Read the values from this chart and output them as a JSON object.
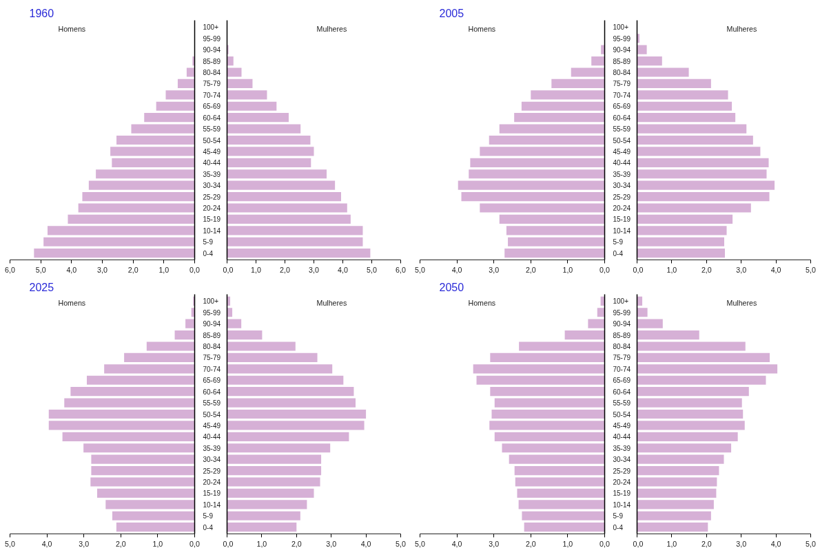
{
  "chart_data": [
    {
      "type": "bar",
      "orientation": "horizontal",
      "title": "1960",
      "annotations": [
        "Homens"
      ],
      "color": "#d6b0d6",
      "categories": [
        "100+",
        "95-99",
        "90-94",
        "85-89",
        "80-84",
        "75-79",
        "70-74",
        "65-69",
        "60-64",
        "55-59",
        "50-54",
        "45-49",
        "40-44",
        "35-39",
        "30-34",
        "25-29",
        "20-24",
        "15-19",
        "10-14",
        "5-9",
        "0-4"
      ],
      "values": [
        0,
        0,
        0,
        0.07,
        0.26,
        0.55,
        0.94,
        1.25,
        1.64,
        2.06,
        2.54,
        2.74,
        2.69,
        3.21,
        3.44,
        3.65,
        3.78,
        4.12,
        4.78,
        4.91,
        5.22
      ],
      "xlim": [
        6,
        0
      ],
      "xticks": [
        {
          "value": 6,
          "label": "6,0"
        },
        {
          "value": 5,
          "label": "5,0"
        },
        {
          "value": 4,
          "label": "4,0"
        },
        {
          "value": 3,
          "label": "3,0"
        },
        {
          "value": 2,
          "label": "2,0"
        },
        {
          "value": 1,
          "label": "1,0"
        },
        {
          "value": 0,
          "label": "0,0"
        }
      ]
    },
    {
      "type": "bar",
      "orientation": "horizontal",
      "annotations": [
        "Mulheres"
      ],
      "tick_labels": "x",
      "color": "#d6b0d6",
      "categories": [
        null,
        null,
        null,
        null,
        null,
        null,
        null,
        null,
        null,
        null,
        null,
        null,
        null,
        null,
        null,
        null,
        null,
        null,
        null,
        null,
        null
      ],
      "values": [
        0,
        0,
        0.05,
        0.22,
        0.5,
        0.88,
        1.38,
        1.71,
        2.13,
        2.54,
        2.88,
        3.0,
        2.9,
        3.44,
        3.73,
        3.94,
        4.15,
        4.27,
        4.69,
        4.69,
        4.95
      ],
      "xlim": [
        0,
        6
      ],
      "xticks": [
        {
          "value": 0,
          "label": "0,0"
        },
        {
          "value": 1,
          "label": "1,0"
        },
        {
          "value": 2,
          "label": "2,0"
        },
        {
          "value": 3,
          "label": "3,0"
        },
        {
          "value": 4,
          "label": "4,0"
        },
        {
          "value": 5,
          "label": "5,0"
        },
        {
          "value": 6,
          "label": "6,0"
        }
      ]
    },
    {
      "type": "bar",
      "orientation": "horizontal",
      "title": "2005",
      "annotations": [
        "Homens"
      ],
      "color": "#d6b0d6",
      "categories": [
        "100+",
        "95-99",
        "90-94",
        "85-89",
        "80-84",
        "75-79",
        "70-74",
        "65-69",
        "60-64",
        "55-59",
        "50-54",
        "45-49",
        "40-44",
        "35-39",
        "30-34",
        "25-29",
        "20-24",
        "15-19",
        "10-14",
        "5-9",
        "0-4"
      ],
      "values": [
        0,
        0,
        0.1,
        0.36,
        0.91,
        1.44,
        2.0,
        2.25,
        2.45,
        2.85,
        3.13,
        3.38,
        3.64,
        3.68,
        3.97,
        3.88,
        3.38,
        2.85,
        2.66,
        2.62,
        2.71
      ],
      "xlim": [
        5,
        0
      ],
      "xticks": [
        {
          "value": 5,
          "label": "5,0"
        },
        {
          "value": 4,
          "label": "4,0"
        },
        {
          "value": 3,
          "label": "3,0"
        },
        {
          "value": 2,
          "label": "2,0"
        },
        {
          "value": 1,
          "label": "1,0"
        },
        {
          "value": 0,
          "label": "0,0"
        }
      ]
    },
    {
      "type": "bar",
      "orientation": "horizontal",
      "annotations": [
        "Mulheres"
      ],
      "tick_labels": "x",
      "color": "#d6b0d6",
      "categories": [
        null,
        null,
        null,
        null,
        null,
        null,
        null,
        null,
        null,
        null,
        null,
        null,
        null,
        null,
        null,
        null,
        null,
        null,
        null,
        null,
        null
      ],
      "values": [
        0,
        0.07,
        0.28,
        0.72,
        1.49,
        2.13,
        2.62,
        2.73,
        2.83,
        3.15,
        3.34,
        3.55,
        3.79,
        3.73,
        3.96,
        3.81,
        3.28,
        2.75,
        2.58,
        2.51,
        2.53
      ],
      "xlim": [
        0,
        5
      ],
      "xticks": [
        {
          "value": 0,
          "label": "0,0"
        },
        {
          "value": 1,
          "label": "1,0"
        },
        {
          "value": 2,
          "label": "2,0"
        },
        {
          "value": 3,
          "label": "3,0"
        },
        {
          "value": 4,
          "label": "4,0"
        },
        {
          "value": 5,
          "label": "5,0"
        }
      ]
    },
    {
      "type": "bar",
      "orientation": "horizontal",
      "title": "2025",
      "annotations": [
        "Homens"
      ],
      "color": "#d6b0d6",
      "categories": [
        "100+",
        "95-99",
        "90-94",
        "85-89",
        "80-84",
        "75-79",
        "70-74",
        "65-69",
        "60-64",
        "55-59",
        "50-54",
        "45-49",
        "40-44",
        "35-39",
        "30-34",
        "25-29",
        "20-24",
        "15-19",
        "10-14",
        "5-9",
        "0-4"
      ],
      "values": [
        0.04,
        0.09,
        0.25,
        0.54,
        1.3,
        1.91,
        2.45,
        2.92,
        3.36,
        3.53,
        3.95,
        3.95,
        3.58,
        3.01,
        2.8,
        2.8,
        2.82,
        2.64,
        2.41,
        2.23,
        2.12
      ],
      "xlim": [
        5,
        0
      ],
      "xticks": [
        {
          "value": 5,
          "label": "5,0"
        },
        {
          "value": 4,
          "label": "4,0"
        },
        {
          "value": 3,
          "label": "3,0"
        },
        {
          "value": 2,
          "label": "2,0"
        },
        {
          "value": 1,
          "label": "1,0"
        },
        {
          "value": 0,
          "label": "0,0"
        }
      ]
    },
    {
      "type": "bar",
      "orientation": "horizontal",
      "annotations": [
        "Mulheres"
      ],
      "tick_labels": "x",
      "color": "#d6b0d6",
      "categories": [
        null,
        null,
        null,
        null,
        null,
        null,
        null,
        null,
        null,
        null,
        null,
        null,
        null,
        null,
        null,
        null,
        null,
        null,
        null,
        null,
        null
      ],
      "values": [
        0.09,
        0.15,
        0.41,
        1.01,
        1.97,
        2.6,
        3.03,
        3.35,
        3.65,
        3.7,
        4.0,
        3.95,
        3.51,
        2.97,
        2.71,
        2.71,
        2.68,
        2.5,
        2.3,
        2.11,
        2.0
      ],
      "xlim": [
        0,
        5
      ],
      "xticks": [
        {
          "value": 0,
          "label": "0,0"
        },
        {
          "value": 1,
          "label": "1,0"
        },
        {
          "value": 2,
          "label": "2,0"
        },
        {
          "value": 3,
          "label": "3,0"
        },
        {
          "value": 4,
          "label": "4,0"
        },
        {
          "value": 5,
          "label": "5,0"
        }
      ]
    },
    {
      "type": "bar",
      "orientation": "horizontal",
      "title": "2050",
      "annotations": [
        "Homens"
      ],
      "color": "#d6b0d6",
      "categories": [
        "100+",
        "95-99",
        "90-94",
        "85-89",
        "80-84",
        "75-79",
        "70-74",
        "65-69",
        "60-64",
        "55-59",
        "50-54",
        "45-49",
        "40-44",
        "35-39",
        "30-34",
        "25-29",
        "20-24",
        "15-19",
        "10-14",
        "5-9",
        "0-4"
      ],
      "values": [
        0.11,
        0.2,
        0.45,
        1.08,
        2.32,
        3.1,
        3.56,
        3.47,
        3.1,
        2.98,
        3.06,
        3.12,
        2.98,
        2.78,
        2.59,
        2.44,
        2.42,
        2.37,
        2.33,
        2.24,
        2.18
      ],
      "xlim": [
        5,
        0
      ],
      "xticks": [
        {
          "value": 5,
          "label": "5,0"
        },
        {
          "value": 4,
          "label": "4,0"
        },
        {
          "value": 3,
          "label": "3,0"
        },
        {
          "value": 2,
          "label": "2,0"
        },
        {
          "value": 1,
          "label": "1,0"
        },
        {
          "value": 0,
          "label": "0,0"
        }
      ]
    },
    {
      "type": "bar",
      "orientation": "horizontal",
      "annotations": [
        "Mulheres"
      ],
      "tick_labels": "x",
      "color": "#d6b0d6",
      "categories": [
        null,
        null,
        null,
        null,
        null,
        null,
        null,
        null,
        null,
        null,
        null,
        null,
        null,
        null,
        null,
        null,
        null,
        null,
        null,
        null,
        null
      ],
      "values": [
        0.15,
        0.3,
        0.74,
        1.79,
        3.12,
        3.82,
        4.04,
        3.71,
        3.22,
        3.02,
        3.05,
        3.1,
        2.9,
        2.71,
        2.5,
        2.36,
        2.3,
        2.28,
        2.21,
        2.13,
        2.04
      ],
      "xlim": [
        0,
        5
      ],
      "xticks": [
        {
          "value": 0,
          "label": "0,0"
        },
        {
          "value": 1,
          "label": "1,0"
        },
        {
          "value": 2,
          "label": "2,0"
        },
        {
          "value": 3,
          "label": "3,0"
        },
        {
          "value": 4,
          "label": "4,0"
        },
        {
          "value": 5,
          "label": "5,0"
        }
      ]
    }
  ]
}
